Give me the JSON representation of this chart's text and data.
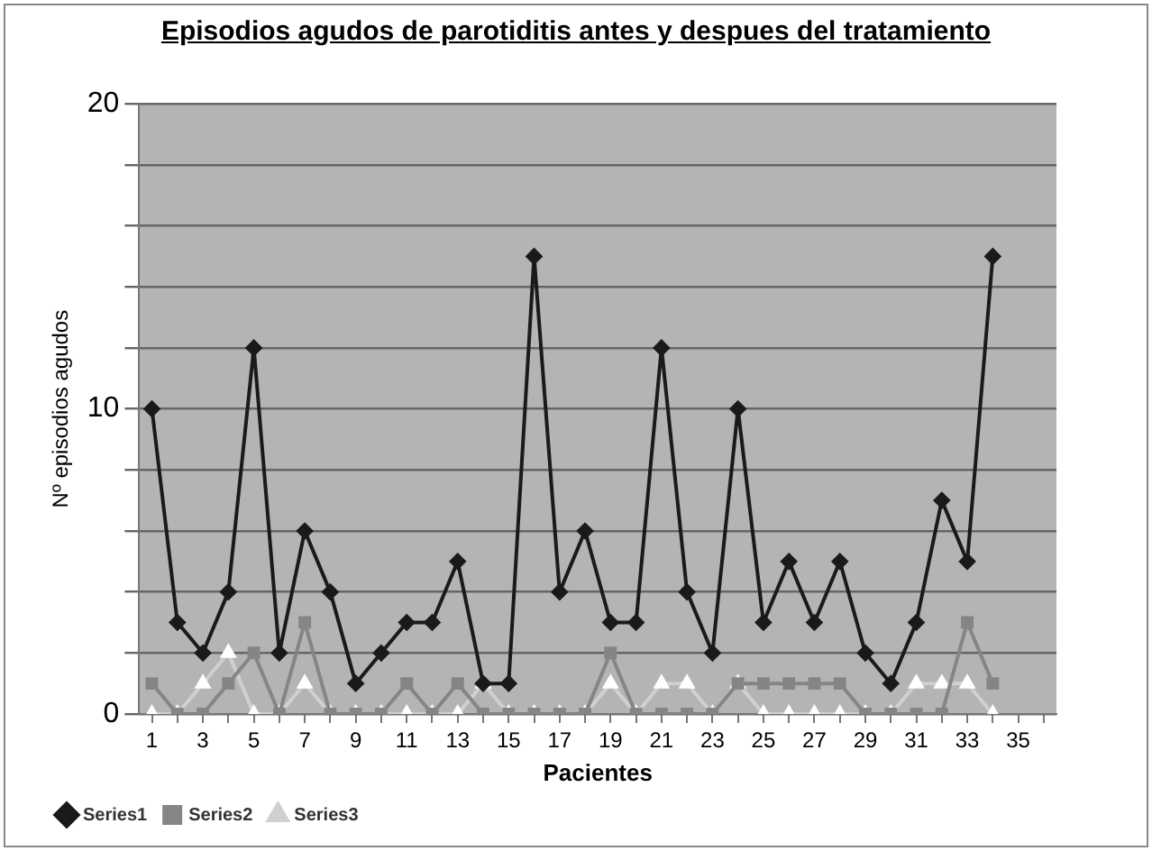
{
  "chart_data": {
    "type": "line",
    "title": "Episodios agudos de parotiditis antes y despues del tratamiento",
    "xlabel": "Pacientes",
    "ylabel": "Nº episodios agudos",
    "x": [
      1,
      2,
      3,
      4,
      5,
      6,
      7,
      8,
      9,
      10,
      11,
      12,
      13,
      14,
      15,
      16,
      17,
      18,
      19,
      20,
      21,
      22,
      23,
      24,
      25,
      26,
      27,
      28,
      29,
      30,
      31,
      32,
      33,
      34
    ],
    "series": [
      {
        "name": "Series1",
        "color": "#1a1a1a",
        "marker": "diamond",
        "values": [
          10,
          3,
          2,
          4,
          12,
          2,
          6,
          4,
          1,
          2,
          3,
          3,
          5,
          1,
          1,
          15,
          4,
          6,
          3,
          3,
          12,
          4,
          2,
          10,
          3,
          5,
          3,
          5,
          2,
          1,
          3,
          7,
          5,
          15
        ]
      },
      {
        "name": "Series2",
        "color": "#858585",
        "marker": "square",
        "values": [
          1,
          0,
          0,
          1,
          2,
          0,
          3,
          0,
          0,
          0,
          1,
          0,
          1,
          0,
          0,
          0,
          0,
          0,
          2,
          0,
          0,
          0,
          0,
          1,
          1,
          1,
          1,
          1,
          0,
          0,
          0,
          0,
          3,
          1
        ]
      },
      {
        "name": "Series3",
        "color": "#d0d0d0",
        "marker": "triangle",
        "values": [
          0,
          0,
          1,
          2,
          0,
          0,
          1,
          0,
          0,
          0,
          0,
          0,
          0,
          1,
          0,
          0,
          0,
          0,
          1,
          0,
          1,
          1,
          0,
          1,
          0,
          0,
          0,
          0,
          0,
          0,
          1,
          1,
          1,
          0
        ]
      }
    ],
    "xlim": [
      0.5,
      36.5
    ],
    "xticks": [
      1,
      {
        "value": 2,
        "label": null
      },
      3,
      {
        "value": 4,
        "label": null
      },
      5,
      {
        "value": 6,
        "label": null
      },
      7,
      {
        "value": 8,
        "label": null
      },
      9,
      {
        "value": 10,
        "label": null
      },
      11,
      {
        "value": 12,
        "label": null
      },
      13,
      {
        "value": 14,
        "label": null
      },
      15,
      {
        "value": 16,
        "label": null
      },
      17,
      {
        "value": 18,
        "label": null
      },
      19,
      {
        "value": 20,
        "label": null
      },
      21,
      {
        "value": 22,
        "label": null
      },
      23,
      {
        "value": 24,
        "label": null
      },
      25,
      {
        "value": 26,
        "label": null
      },
      27,
      {
        "value": 28,
        "label": null
      },
      29,
      {
        "value": 30,
        "label": null
      },
      31,
      {
        "value": 32,
        "label": null
      },
      33,
      {
        "value": 34,
        "label": null
      },
      35,
      {
        "value": 36,
        "label": null
      }
    ],
    "ylim": [
      0,
      20
    ],
    "yticks": [
      0,
      {
        "value": 2,
        "label": null
      },
      {
        "value": 4,
        "label": null
      },
      {
        "value": 6,
        "label": null
      },
      {
        "value": 8,
        "label": null
      },
      10,
      {
        "value": 12,
        "label": null
      },
      {
        "value": 14,
        "label": null
      },
      {
        "value": 16,
        "label": null
      },
      {
        "value": 18,
        "label": null
      },
      20
    ],
    "grid": "y",
    "legend": "bottom left",
    "line_style": "solid"
  }
}
